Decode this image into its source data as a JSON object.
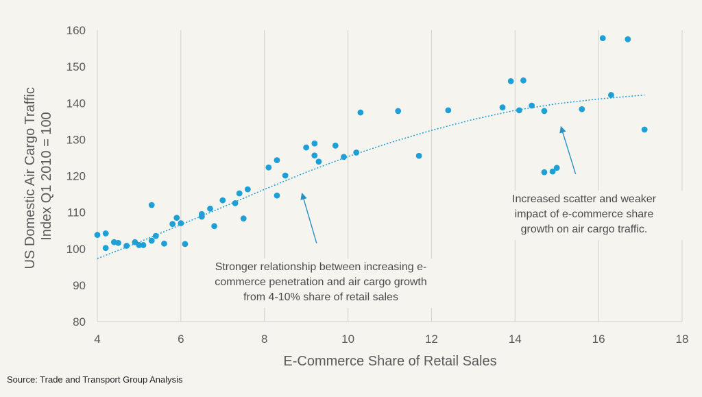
{
  "chart_data": {
    "type": "scatter",
    "xlabel": "E-Commerce Share of Retail Sales",
    "ylabel": "US Domestic Air Cargo Traffic Index Q1 2010 = 100",
    "xlim": [
      4,
      18
    ],
    "ylim": [
      80,
      160
    ],
    "xticks": [
      4,
      6,
      8,
      10,
      12,
      14,
      16,
      18
    ],
    "yticks": [
      80,
      90,
      100,
      110,
      120,
      130,
      140,
      150,
      160
    ],
    "grid": "vertical",
    "colors": {
      "points": "#1ea0d7",
      "trendline": "#1ea0d7",
      "arrows": "#2b8fc2"
    },
    "points": [
      {
        "x": 4.0,
        "y": 103.8
      },
      {
        "x": 4.2,
        "y": 104.2
      },
      {
        "x": 4.2,
        "y": 100.2
      },
      {
        "x": 4.4,
        "y": 101.8
      },
      {
        "x": 4.5,
        "y": 101.6
      },
      {
        "x": 4.7,
        "y": 100.8
      },
      {
        "x": 4.9,
        "y": 101.8
      },
      {
        "x": 5.0,
        "y": 101.0
      },
      {
        "x": 5.1,
        "y": 101.0
      },
      {
        "x": 5.3,
        "y": 102.2
      },
      {
        "x": 5.3,
        "y": 112.0
      },
      {
        "x": 5.4,
        "y": 103.5
      },
      {
        "x": 5.6,
        "y": 101.4
      },
      {
        "x": 5.8,
        "y": 106.8
      },
      {
        "x": 5.9,
        "y": 108.5
      },
      {
        "x": 6.0,
        "y": 107.0
      },
      {
        "x": 6.1,
        "y": 101.3
      },
      {
        "x": 6.5,
        "y": 109.5
      },
      {
        "x": 6.5,
        "y": 108.8
      },
      {
        "x": 6.7,
        "y": 111.0
      },
      {
        "x": 6.8,
        "y": 106.2
      },
      {
        "x": 7.0,
        "y": 113.3
      },
      {
        "x": 7.3,
        "y": 112.5
      },
      {
        "x": 7.4,
        "y": 115.2
      },
      {
        "x": 7.5,
        "y": 108.3
      },
      {
        "x": 7.6,
        "y": 116.3
      },
      {
        "x": 8.1,
        "y": 122.3
      },
      {
        "x": 8.3,
        "y": 124.3
      },
      {
        "x": 8.3,
        "y": 114.6
      },
      {
        "x": 8.5,
        "y": 120.1
      },
      {
        "x": 9.0,
        "y": 127.8
      },
      {
        "x": 9.2,
        "y": 128.9
      },
      {
        "x": 9.2,
        "y": 125.6
      },
      {
        "x": 9.3,
        "y": 123.9
      },
      {
        "x": 9.7,
        "y": 128.3
      },
      {
        "x": 9.9,
        "y": 125.2
      },
      {
        "x": 10.2,
        "y": 126.4
      },
      {
        "x": 10.3,
        "y": 137.4
      },
      {
        "x": 11.2,
        "y": 137.8
      },
      {
        "x": 11.7,
        "y": 125.5
      },
      {
        "x": 12.4,
        "y": 138.0
      },
      {
        "x": 13.7,
        "y": 138.8
      },
      {
        "x": 13.9,
        "y": 146.0
      },
      {
        "x": 14.1,
        "y": 138.0
      },
      {
        "x": 14.2,
        "y": 146.2
      },
      {
        "x": 14.4,
        "y": 139.3
      },
      {
        "x": 14.7,
        "y": 137.8
      },
      {
        "x": 14.7,
        "y": 121.0
      },
      {
        "x": 14.9,
        "y": 121.2
      },
      {
        "x": 15.0,
        "y": 122.2
      },
      {
        "x": 15.6,
        "y": 138.3
      },
      {
        "x": 16.1,
        "y": 157.8
      },
      {
        "x": 16.3,
        "y": 142.2
      },
      {
        "x": 16.7,
        "y": 157.5
      },
      {
        "x": 17.1,
        "y": 132.7
      }
    ],
    "trendline": {
      "type": "polynomial",
      "x": [
        4.0,
        5.0,
        6.0,
        7.0,
        8.0,
        9.0,
        10.0,
        11.0,
        12.0,
        13.0,
        14.0,
        15.0,
        16.0,
        17.1
      ],
      "y": [
        97.3,
        101.8,
        106.6,
        111.4,
        116.3,
        121.0,
        125.3,
        129.1,
        132.5,
        135.5,
        138.0,
        139.8,
        141.1,
        142.2
      ]
    },
    "annotations": [
      {
        "text": "Stronger relationship between increasing e-commerce penetration and air cargo growth from 4-10% share of retail sales",
        "lines": [
          "Stronger relationship between increasing e-",
          "commerce penetration and air cargo growth",
          "from 4-10% share of retail sales"
        ],
        "arrow_from": {
          "x": 9.25,
          "y": 101.5
        },
        "arrow_to": {
          "x": 8.9,
          "y": 115.2
        }
      },
      {
        "text": "Increased scatter and weaker impact of e-commerce share growth on air cargo traffic.",
        "lines": [
          "Increased scatter and weaker",
          "impact of e-commerce share",
          "growth on air cargo traffic."
        ],
        "arrow_from": {
          "x": 15.45,
          "y": 120.5
        },
        "arrow_to": {
          "x": 15.1,
          "y": 133.5
        }
      }
    ]
  },
  "source": "Source: Trade and Transport Group Analysis"
}
